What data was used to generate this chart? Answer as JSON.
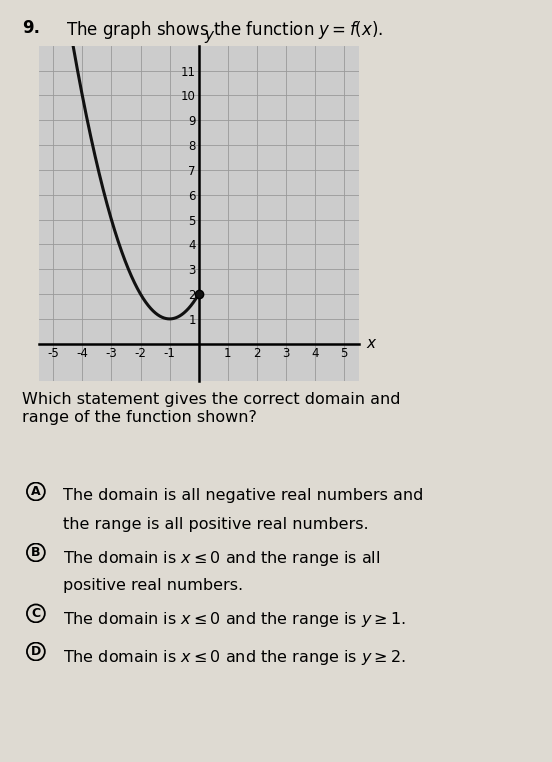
{
  "question_number": "9.",
  "question_text": "The graph shows the function $y = f(x)$.",
  "graph": {
    "xlim": [
      -5.5,
      5.5
    ],
    "ylim": [
      -1.5,
      12
    ],
    "xticks": [
      -5,
      -4,
      -3,
      -2,
      -1,
      0,
      1,
      2,
      3,
      4,
      5
    ],
    "yticks": [
      1,
      2,
      3,
      4,
      5,
      6,
      7,
      8,
      9,
      10,
      11
    ],
    "xlabel": "x",
    "ylabel": "y",
    "curve_color": "#111111",
    "curve_lw": 2.2,
    "dot_x": 0,
    "dot_y": 2,
    "dot_color": "#111111",
    "dot_size": 6,
    "background_color": "#cccccc"
  },
  "answer_choices": [
    {
      "letter": "A",
      "text1": "The domain is all negative real numbers and",
      "text2": "the range is all positive real numbers."
    },
    {
      "letter": "B",
      "text1": "The domain is $x \\leq 0$ and the range is all",
      "text2": "positive real numbers."
    },
    {
      "letter": "C",
      "text1": "The domain is $x \\leq 0$ and the range is $y \\geq 1$."
    },
    {
      "letter": "D",
      "text1": "The domain is $x \\leq 0$ and the range is $y \\geq 2$."
    }
  ],
  "question_prompt": "Which statement gives the correct domain and\nrange of the function shown?",
  "background_page": "#dedad2"
}
